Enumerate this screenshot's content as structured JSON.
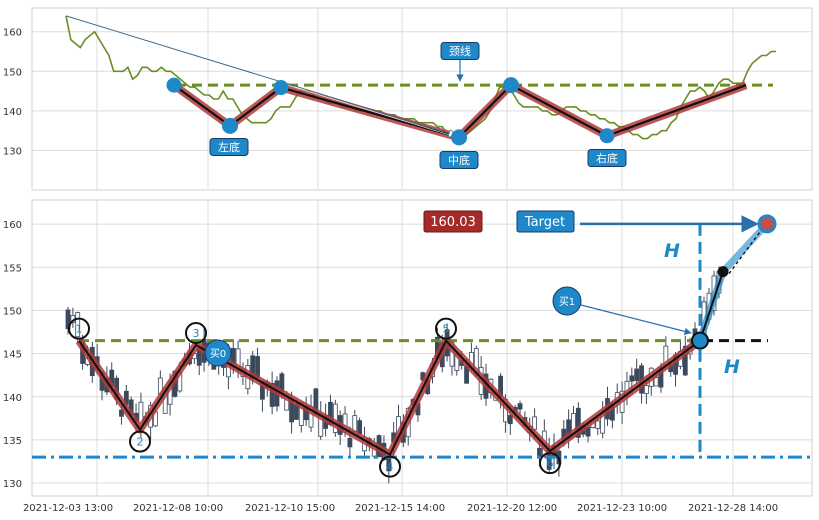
{
  "chart_data": [
    {
      "type": "line",
      "panel": "top",
      "grid": true,
      "ylim": [
        120,
        166
      ],
      "y_ticks": [
        130,
        140,
        150,
        160
      ],
      "series": [
        {
          "color": "#6b8e23",
          "values": [
            164,
            158,
            157,
            156,
            158,
            159,
            160,
            158,
            156,
            154,
            150,
            150,
            150,
            151,
            148,
            149,
            151,
            151,
            150,
            150,
            151,
            150,
            150,
            149,
            148,
            147,
            146,
            146,
            145,
            144,
            144,
            143,
            143,
            145,
            143,
            143,
            141,
            139,
            138,
            137,
            137,
            137,
            137,
            138,
            140,
            141,
            141,
            141,
            143,
            145,
            145,
            145,
            144,
            143,
            143,
            142,
            142,
            142,
            141,
            141,
            141,
            140,
            140,
            140,
            140,
            140,
            140,
            139,
            139,
            139,
            138,
            138,
            138,
            138,
            137,
            137,
            137,
            137,
            136,
            136,
            134,
            134,
            133,
            133,
            134,
            135,
            136,
            137,
            138,
            140,
            143,
            146,
            146,
            146,
            144,
            142,
            141,
            141,
            141,
            141,
            140,
            140,
            139,
            139,
            140,
            141,
            141,
            141,
            140,
            140,
            139,
            139,
            138,
            138,
            137,
            137,
            136,
            136,
            135,
            134,
            134,
            133,
            133,
            134,
            134,
            135,
            135,
            137,
            138,
            141,
            143,
            145,
            145,
            146,
            145,
            143,
            145,
            147,
            148,
            148,
            147,
            147,
            147,
            150,
            152,
            153,
            154,
            154,
            155,
            155
          ]
        }
      ],
      "levels": [
        {
          "name": "neckline",
          "value": 146.5,
          "color": "#6b8e23",
          "style": "dashed"
        }
      ],
      "pattern_path": [
        146.5,
        136.2,
        145.9,
        133.3,
        146.5,
        133.7,
        146.5
      ],
      "annotations": [
        {
          "id": "left_bottom",
          "label": "左底",
          "value": 136.2
        },
        {
          "id": "middle_bottom",
          "label": "中底",
          "value": 133.3
        },
        {
          "id": "right_bottom",
          "label": "右底",
          "value": 133.7
        },
        {
          "id": "neckline",
          "label": "颈线",
          "value": 149
        }
      ]
    },
    {
      "type": "candlestick",
      "panel": "bottom",
      "grid": true,
      "ylim": [
        128.5,
        162.8
      ],
      "y_ticks": [
        130,
        135,
        140,
        145,
        150,
        155,
        160
      ],
      "x_ticks": [
        "2021-12-03 13:00",
        "2021-12-08 10:00",
        "2021-12-10 15:00",
        "2021-12-15 14:00",
        "2021-12-20 12:00",
        "2021-12-23 10:00",
        "2021-12-28 14:00"
      ],
      "candle_up_color": "#ffffff",
      "candle_down_color": "#3a4a5c",
      "levels": [
        {
          "name": "neckline",
          "value": 146.5,
          "color": "#6b8e23",
          "style": "dashed"
        },
        {
          "name": "support",
          "value": 133,
          "color": "#1e88c8",
          "style": "dashdot"
        }
      ],
      "pattern_points": [
        {
          "label": "1",
          "value": 146.5
        },
        {
          "label": "2",
          "value": 136.2
        },
        {
          "label": "3",
          "value": 146.0
        },
        {
          "label": "4",
          "value": 133.3
        },
        {
          "label": "5",
          "value": 146.5
        },
        {
          "label": "6",
          "value": 133.7
        },
        {
          "label": "",
          "value": 146.5
        }
      ],
      "annotations": [
        {
          "id": "price_box",
          "text": "160.03",
          "value": 160.03,
          "color": "#a52a2a"
        },
        {
          "id": "target_box",
          "text": "Target",
          "value": 160.03,
          "color": "#1e88c8"
        },
        {
          "id": "buy0",
          "text": "买0",
          "value": 144.7
        },
        {
          "id": "buy1",
          "text": "买1",
          "value": 150.5
        },
        {
          "id": "height_upper",
          "text": "H"
        },
        {
          "id": "height_lower",
          "text": "H"
        }
      ],
      "projection": [
        146.5,
        154.5,
        160.03
      ]
    }
  ]
}
